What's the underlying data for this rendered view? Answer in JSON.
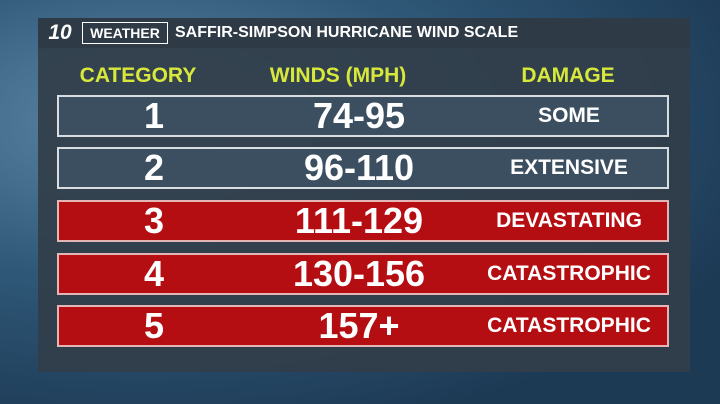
{
  "header": {
    "logo": "10",
    "channel": "WEATHER",
    "title": "SAFFIR-SIMPSON HURRICANE WIND SCALE"
  },
  "table": {
    "columns": [
      "CATEGORY",
      "WINDS (MPH)",
      "DAMAGE"
    ],
    "rows": [
      [
        "1",
        "74-95",
        "SOME"
      ],
      [
        "2",
        "96-110",
        "EXTENSIVE"
      ],
      [
        "3",
        "111-129",
        "DEVASTATING"
      ],
      [
        "4",
        "130-156",
        "CATASTROPHIC"
      ],
      [
        "5",
        "157+",
        "CATASTROPHIC"
      ]
    ]
  }
}
